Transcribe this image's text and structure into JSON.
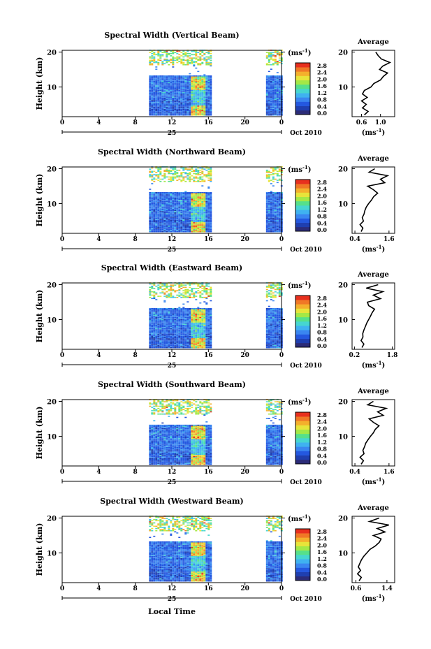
{
  "figure": {
    "xlabel": "Local Time",
    "date_label": "25",
    "month_label": "Oct 2010",
    "ylabel": "Height (km)",
    "colorbar_unit": "(ms",
    "unit_exponent": "-1",
    "unit_close": ")",
    "average_title": "Average"
  },
  "chart_data": [
    {
      "type": "heatmap",
      "title": "Spectral Width (Vertical Beam)",
      "xlabel": "Local Time",
      "ylabel": "Height (km)",
      "xticks": [
        "0",
        "4",
        "8",
        "12",
        "16",
        "20",
        "0"
      ],
      "yticks": [
        "10",
        "20"
      ],
      "xlim": [
        0,
        24
      ],
      "ylim": [
        1.5,
        20.5
      ],
      "data_blocks_hours": [
        [
          9.5,
          16.3
        ],
        [
          22.3,
          24
        ]
      ],
      "colorbar": {
        "unit": "ms-1",
        "ticks": [
          "0.0",
          "0.4",
          "0.8",
          "1.2",
          "1.6",
          "2.0",
          "2.4",
          "2.8"
        ],
        "range": [
          0,
          2.8
        ]
      },
      "average_profile": {
        "title": "Average",
        "xlabel": "ms-1",
        "xtick_labels": [
          "0.6",
          "1.0"
        ],
        "xtick_values": [
          0.6,
          1.0
        ],
        "xlim": [
          0.4,
          1.3
        ],
        "height": [
          2,
          3,
          4,
          5,
          6,
          7,
          8,
          9,
          10,
          11,
          12,
          13,
          14,
          15,
          16,
          17,
          18,
          19,
          20
        ],
        "values": [
          0.66,
          0.74,
          0.62,
          0.7,
          0.6,
          0.72,
          0.62,
          0.66,
          0.8,
          0.86,
          1.0,
          1.06,
          1.15,
          0.98,
          1.05,
          1.2,
          1.02,
          0.95,
          0.9
        ]
      }
    },
    {
      "type": "heatmap",
      "title": "Spectral Width (Northward Beam)",
      "xlabel": "Local Time",
      "ylabel": "Height (km)",
      "xticks": [
        "0",
        "4",
        "8",
        "12",
        "16",
        "20",
        "0"
      ],
      "yticks": [
        "10",
        "20"
      ],
      "xlim": [
        0,
        24
      ],
      "ylim": [
        1.5,
        20.5
      ],
      "data_blocks_hours": [
        [
          9.5,
          16.3
        ],
        [
          22.3,
          24
        ]
      ],
      "colorbar": {
        "unit": "ms-1",
        "ticks": [
          "0.0",
          "0.4",
          "0.8",
          "1.2",
          "1.6",
          "2.0",
          "2.4",
          "2.8"
        ],
        "range": [
          0,
          2.8
        ]
      },
      "average_profile": {
        "title": "Average",
        "xlabel": "ms-1",
        "xtick_labels": [
          "0.4",
          "1.6"
        ],
        "xtick_values": [
          0.4,
          1.6
        ],
        "xlim": [
          0.3,
          1.8
        ],
        "height": [
          2,
          3,
          4,
          5,
          6,
          7,
          8,
          9,
          10,
          11,
          12,
          13,
          14,
          15,
          16,
          17,
          18,
          19,
          20
        ],
        "values": [
          0.62,
          0.68,
          0.58,
          0.7,
          0.66,
          0.72,
          0.75,
          0.8,
          0.88,
          0.98,
          1.06,
          1.2,
          1.05,
          0.85,
          1.45,
          1.3,
          1.55,
          0.9,
          1.1
        ]
      }
    },
    {
      "type": "heatmap",
      "title": "Spectral Width (Eastward Beam)",
      "xlabel": "Local Time",
      "ylabel": "Height (km)",
      "xticks": [
        "0",
        "4",
        "8",
        "12",
        "16",
        "20",
        "0"
      ],
      "yticks": [
        "10",
        "20"
      ],
      "xlim": [
        0,
        24
      ],
      "ylim": [
        1.5,
        20.5
      ],
      "data_blocks_hours": [
        [
          9.5,
          16.3
        ],
        [
          22.3,
          24
        ]
      ],
      "colorbar": {
        "unit": "ms-1",
        "ticks": [
          "0.0",
          "0.4",
          "0.8",
          "1.2",
          "1.6",
          "2.0",
          "2.4",
          "2.8"
        ],
        "range": [
          0,
          2.8
        ]
      },
      "average_profile": {
        "title": "Average",
        "xlabel": "ms-1",
        "xtick_labels": [
          "0.2",
          "1.8"
        ],
        "xtick_values": [
          0.2,
          1.8
        ],
        "xlim": [
          0.1,
          1.9
        ],
        "height": [
          2,
          3,
          4,
          5,
          6,
          7,
          8,
          9,
          10,
          11,
          12,
          13,
          14,
          15,
          16,
          17,
          18,
          19,
          20
        ],
        "values": [
          0.52,
          0.6,
          0.48,
          0.56,
          0.55,
          0.6,
          0.66,
          0.72,
          0.8,
          0.88,
          0.95,
          1.05,
          0.8,
          0.75,
          1.3,
          1.0,
          1.4,
          0.7,
          1.2
        ]
      }
    },
    {
      "type": "heatmap",
      "title": "Spectral Width (Southward Beam)",
      "xlabel": "Local Time",
      "ylabel": "Height (km)",
      "xticks": [
        "0",
        "4",
        "8",
        "12",
        "16",
        "20",
        "0"
      ],
      "yticks": [
        "10",
        "20"
      ],
      "xlim": [
        0,
        24
      ],
      "ylim": [
        1.5,
        20.5
      ],
      "data_blocks_hours": [
        [
          9.5,
          16.3
        ],
        [
          22.3,
          24
        ]
      ],
      "colorbar": {
        "unit": "ms-1",
        "ticks": [
          "0.0",
          "0.4",
          "0.8",
          "1.2",
          "1.6",
          "2.0",
          "2.4",
          "2.8"
        ],
        "range": [
          0,
          2.8
        ]
      },
      "average_profile": {
        "title": "Average",
        "xlabel": "ms-1",
        "xtick_labels": [
          "0.4",
          "1.6"
        ],
        "xtick_values": [
          0.4,
          1.6
        ],
        "xlim": [
          0.3,
          1.8
        ],
        "height": [
          2,
          3,
          4,
          5,
          6,
          7,
          8,
          9,
          10,
          11,
          12,
          13,
          14,
          15,
          16,
          17,
          18,
          19,
          20
        ],
        "values": [
          0.62,
          0.7,
          0.58,
          0.72,
          0.68,
          0.74,
          0.78,
          0.86,
          0.95,
          1.05,
          1.12,
          1.25,
          1.05,
          0.9,
          1.4,
          1.2,
          1.5,
          0.85,
          1.05
        ]
      }
    },
    {
      "type": "heatmap",
      "title": "Spectral Width (Westward Beam)",
      "xlabel": "Local Time",
      "ylabel": "Height (km)",
      "xticks": [
        "0",
        "4",
        "8",
        "12",
        "16",
        "20",
        "0"
      ],
      "yticks": [
        "10",
        "20"
      ],
      "xlim": [
        0,
        24
      ],
      "ylim": [
        1.5,
        20.5
      ],
      "data_blocks_hours": [
        [
          9.5,
          16.3
        ],
        [
          22.3,
          24
        ]
      ],
      "colorbar": {
        "unit": "ms-1",
        "ticks": [
          "0.0",
          "0.4",
          "0.8",
          "1.2",
          "1.6",
          "2.0",
          "2.4",
          "2.8"
        ],
        "range": [
          0,
          2.8
        ]
      },
      "average_profile": {
        "title": "Average",
        "xlabel": "ms-1",
        "xtick_labels": [
          "0.6",
          "1.4"
        ],
        "xtick_values": [
          0.6,
          1.4
        ],
        "xlim": [
          0.5,
          1.6
        ],
        "height": [
          2,
          3,
          4,
          5,
          6,
          7,
          8,
          9,
          10,
          11,
          12,
          13,
          14,
          15,
          16,
          17,
          18,
          19,
          20
        ],
        "values": [
          0.68,
          0.74,
          0.64,
          0.72,
          0.66,
          0.7,
          0.74,
          0.8,
          0.88,
          0.96,
          1.1,
          1.2,
          1.25,
          1.05,
          1.35,
          1.15,
          1.45,
          0.95,
          1.2
        ]
      }
    }
  ]
}
